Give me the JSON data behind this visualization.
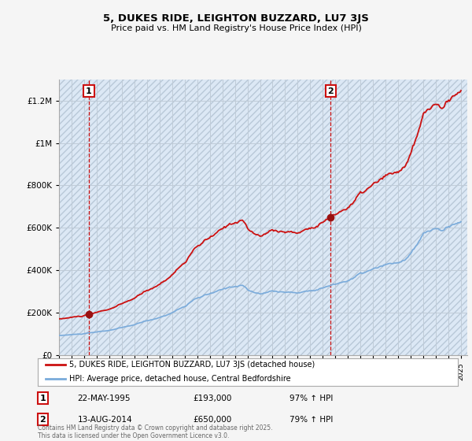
{
  "title": "5, DUKES RIDE, LEIGHTON BUZZARD, LU7 3JS",
  "subtitle": "Price paid vs. HM Land Registry's House Price Index (HPI)",
  "ytick_vals": [
    0,
    200000,
    400000,
    600000,
    800000,
    1000000,
    1200000
  ],
  "ylim": [
    0,
    1300000
  ],
  "legend_line1": "5, DUKES RIDE, LEIGHTON BUZZARD, LU7 3JS (detached house)",
  "legend_line2": "HPI: Average price, detached house, Central Bedfordshire",
  "annotation1_date": "22-MAY-1995",
  "annotation1_price": "£193,000",
  "annotation1_hpi": "97% ↑ HPI",
  "annotation2_date": "13-AUG-2014",
  "annotation2_price": "£650,000",
  "annotation2_hpi": "79% ↑ HPI",
  "footer": "Contains HM Land Registry data © Crown copyright and database right 2025.\nThis data is licensed under the Open Government Licence v3.0.",
  "bg_color": "#f5f5f5",
  "plot_bg_color": "#dce8f5",
  "hatch_color": "#b8c8d8",
  "grid_color": "#c0ccd8",
  "hpi_line_color": "#7aabdb",
  "price_line_color": "#cc1111",
  "marker_color": "#991111",
  "vline1_x": 1995.38,
  "vline2_x": 2014.62,
  "sale1_y": 193000,
  "sale2_y": 650000,
  "xlim_lo": 1993.0,
  "xlim_hi": 2025.5
}
